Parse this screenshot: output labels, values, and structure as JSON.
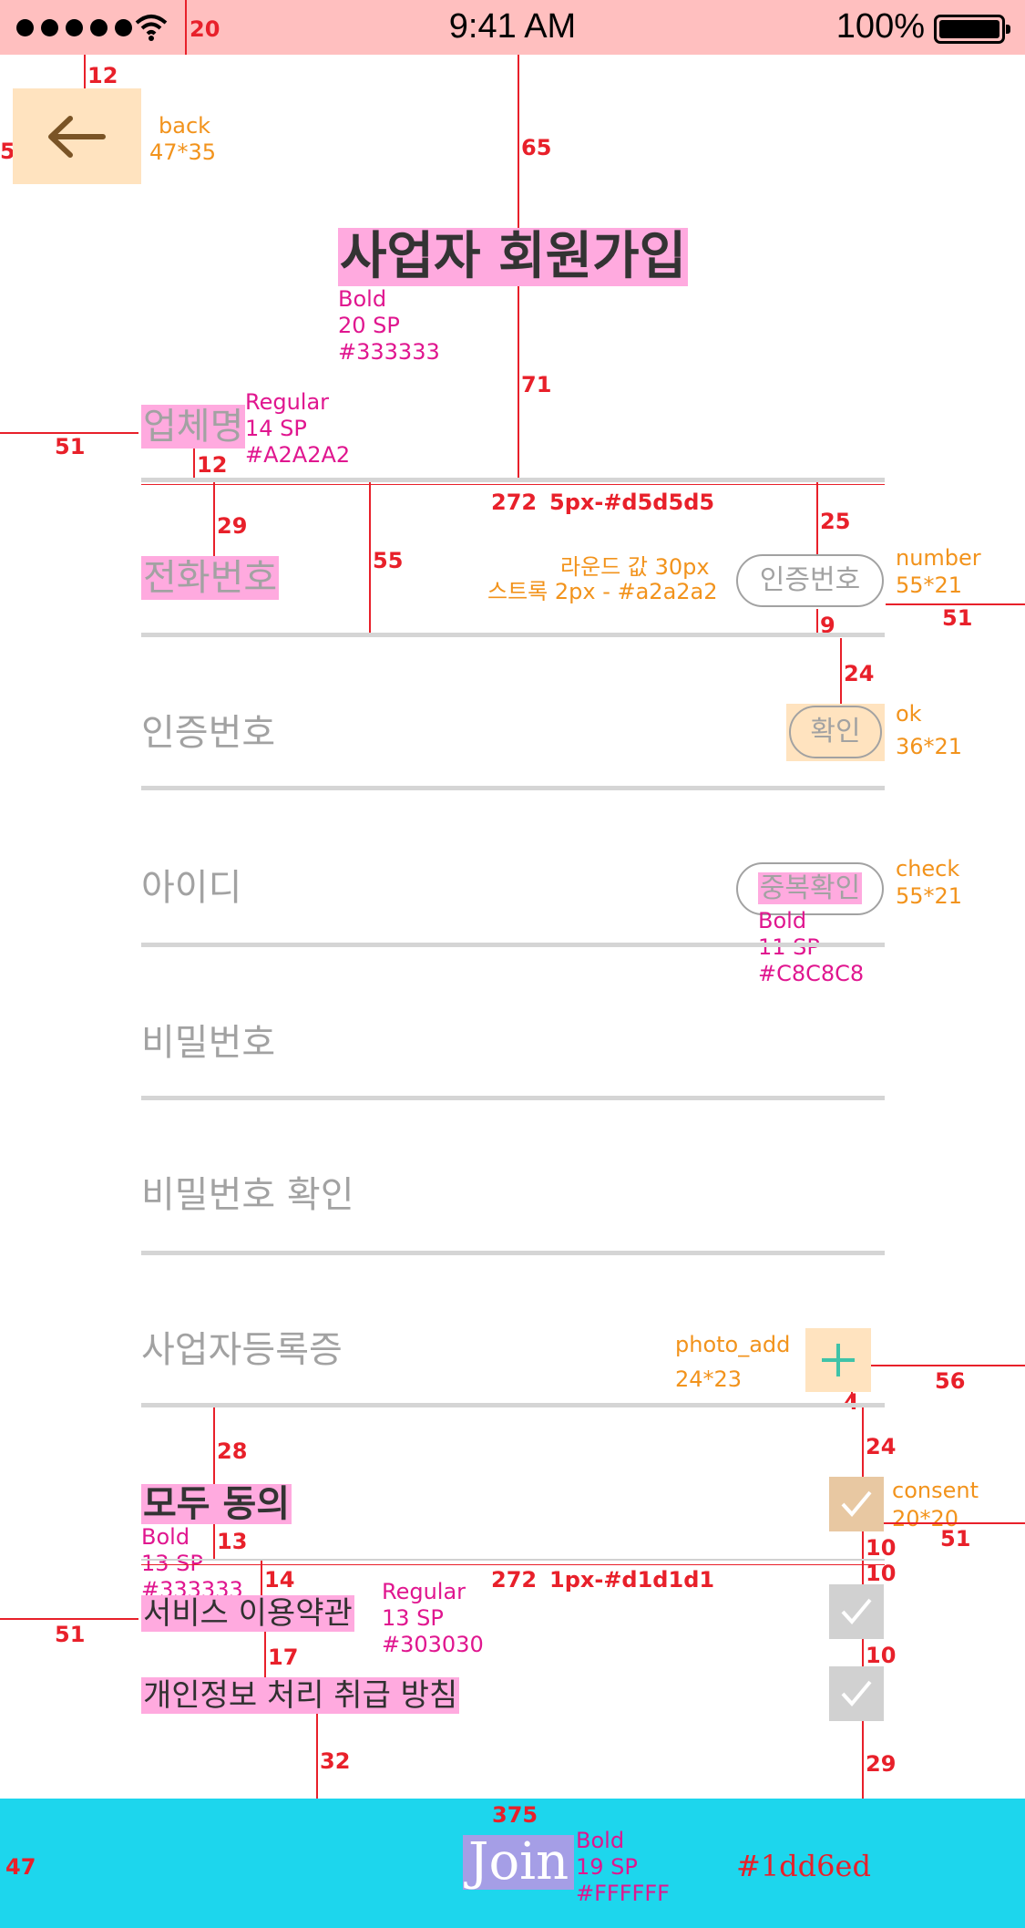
{
  "status_bar": {
    "time": "9:41 AM",
    "battery": "100%",
    "annotation_height": "20"
  },
  "back": {
    "icon": "arrow-left-icon",
    "name": "back",
    "size": "47*35"
  },
  "title": {
    "text": "사업자 회원가입",
    "font_weight": "Bold",
    "font_size": "20 SP",
    "color": "#333333"
  },
  "fields": {
    "company": {
      "placeholder": "업체명",
      "spec_weight": "Regular",
      "spec_size": "14 SP",
      "spec_color": "#A2A2A2"
    },
    "phone": {
      "placeholder": "전화번호",
      "button": "인증번호",
      "button_name": "number",
      "button_size": "55*21"
    },
    "verify_code": {
      "placeholder": "인증번호",
      "button": "확인",
      "button_name": "ok",
      "button_size": "36*21"
    },
    "user_id": {
      "placeholder": "아이디",
      "button": "중복확인",
      "button_name": "check",
      "button_size": "55*21",
      "spec_weight": "Bold",
      "spec_size": "11 SP",
      "spec_color": "#C8C8C8"
    },
    "password": {
      "placeholder": "비밀번호"
    },
    "password_confirm": {
      "placeholder": "비밀번호 확인"
    },
    "business_license": {
      "placeholder": "사업자등록증",
      "button_icon": "plus-icon",
      "button_name": "photo_add",
      "button_size": "24*23"
    }
  },
  "underline_spec": {
    "width": "272",
    "style": "5px-#d5d5d5"
  },
  "pill_spec": {
    "radius": "라운드 값 30px",
    "stroke": "스트록 2px - #a2a2a2"
  },
  "consent": {
    "all_label": "모두 동의",
    "all_spec_weight": "Bold",
    "all_spec_size": "13 SP",
    "all_spec_color": "#333333",
    "checkbox_name": "consent",
    "checkbox_size": "20*20",
    "divider_width": "272",
    "divider_style": "1px-#d1d1d1",
    "items": [
      {
        "label": "서비스 이용약관"
      },
      {
        "label": "개인정보 처리 취급 방침"
      }
    ],
    "item_spec_weight": "Regular",
    "item_spec_size": "13 SP",
    "item_spec_color": "#303030"
  },
  "join": {
    "label": "Join",
    "width": "375",
    "height": "47",
    "font_weight": "Bold",
    "font_size": "19 SP",
    "font_color": "#FFFFFF",
    "background": "#1dd6ed"
  },
  "measurements": {
    "m12a": "12",
    "m65": "65",
    "m71": "71",
    "m51a": "51",
    "m12b": "12",
    "m29": "29",
    "m55": "55",
    "m25": "25",
    "m9": "9",
    "m51b": "51",
    "m24a": "24",
    "m56": "56",
    "m4": "4",
    "m24b": "24",
    "m28": "28",
    "m13": "13",
    "m14": "14",
    "m10a": "10",
    "m10b": "10",
    "m10c": "10",
    "m51c": "51",
    "m51d": "51",
    "m17": "17",
    "m32": "32",
    "m29b": "29",
    "m5": "5"
  }
}
